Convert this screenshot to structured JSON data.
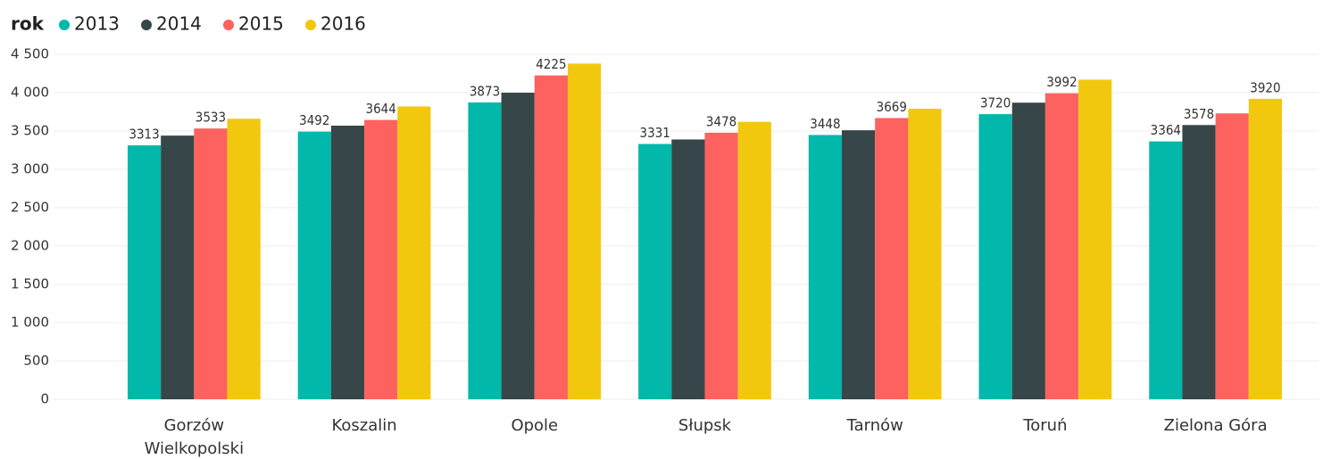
{
  "chart_data": {
    "type": "bar",
    "legend_title": "rok",
    "categories": [
      "Gorzów Wielkopolski",
      "Koszalin",
      "Opole",
      "Słupsk",
      "Tarnów",
      "Toruń",
      "Zielona Góra"
    ],
    "series": [
      {
        "name": "2013",
        "color": "#01B8AA",
        "values": [
          3313,
          3492,
          3873,
          3331,
          3448,
          3720,
          3364
        ],
        "value_labels": [
          "3313",
          "3492",
          "3873",
          "3331",
          "3448",
          "3720",
          "3364"
        ]
      },
      {
        "name": "2014",
        "color": "#374649",
        "values": [
          3440,
          3570,
          4000,
          3390,
          3510,
          3870,
          3578
        ],
        "value_labels": [
          null,
          null,
          null,
          null,
          null,
          null,
          "3578"
        ]
      },
      {
        "name": "2015",
        "color": "#FD625E",
        "values": [
          3533,
          3644,
          4225,
          3478,
          3669,
          3992,
          3730
        ],
        "value_labels": [
          "3533",
          "3644",
          "4225",
          "3478",
          "3669",
          "3992",
          null
        ]
      },
      {
        "name": "2016",
        "color": "#F2C80F",
        "values": [
          3660,
          3820,
          4380,
          3620,
          3790,
          4170,
          3920
        ],
        "value_labels": [
          null,
          null,
          null,
          null,
          null,
          null,
          "3920"
        ]
      }
    ],
    "ylim": [
      0,
      4500
    ],
    "yticks": [
      0,
      500,
      {
        "value": 1000,
        "label": "1 000"
      },
      {
        "value": 1500,
        "label": "1 500"
      },
      {
        "value": 2000,
        "label": "2 000"
      },
      {
        "value": 2500,
        "label": "2 500"
      },
      {
        "value": 3000,
        "label": "3 000"
      },
      {
        "value": 3500,
        "label": "3 500"
      },
      {
        "value": 4000,
        "label": "4 000"
      },
      {
        "value": 4500,
        "label": "4 500"
      }
    ],
    "grid": true,
    "legend": "top-left"
  }
}
